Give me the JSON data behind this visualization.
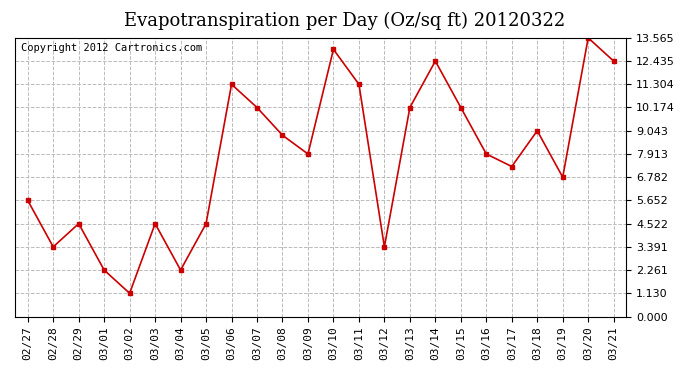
{
  "title": "Evapotranspiration per Day (Oz/sq ft) 20120322",
  "copyright": "Copyright 2012 Cartronics.com",
  "x_labels": [
    "02/27",
    "02/28",
    "02/29",
    "03/01",
    "03/02",
    "03/03",
    "03/04",
    "03/05",
    "03/06",
    "03/07",
    "03/08",
    "03/09",
    "03/10",
    "03/11",
    "03/12",
    "03/13",
    "03/14",
    "03/15",
    "03/16",
    "03/17",
    "03/18",
    "03/19",
    "03/20",
    "03/21"
  ],
  "y_values": [
    5.65,
    3.39,
    4.52,
    2.26,
    1.13,
    4.52,
    2.26,
    4.52,
    11.3,
    10.17,
    8.82,
    7.91,
    13.0,
    11.3,
    3.39,
    10.17,
    12.43,
    10.17,
    7.91,
    7.3,
    9.04,
    6.78,
    13.56,
    12.43
  ],
  "line_color": "#cc0000",
  "marker": "s",
  "marker_size": 3,
  "background_color": "#ffffff",
  "grid_color": "#bbbbbb",
  "yticks": [
    0.0,
    1.13,
    2.261,
    3.391,
    4.522,
    5.652,
    6.782,
    7.913,
    9.043,
    10.174,
    11.304,
    12.435,
    13.565
  ],
  "ylim": [
    0.0,
    13.565
  ],
  "title_fontsize": 13,
  "copyright_fontsize": 7.5,
  "tick_fontsize": 8
}
